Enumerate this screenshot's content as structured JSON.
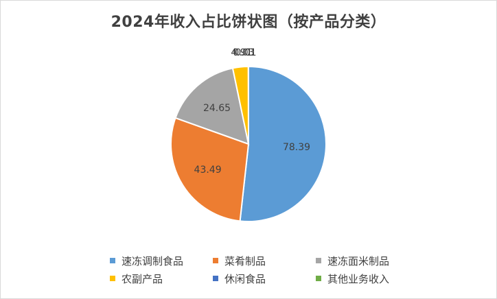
{
  "chart_data": {
    "type": "pie",
    "title": "2024年收入占比饼状图（按产品分类）",
    "categories": [
      "速冻调制食品",
      "菜肴制品",
      "速冻面米制品",
      "农副产品",
      "休闲食品",
      "其他业务收入"
    ],
    "values": [
      78.39,
      43.49,
      24.65,
      4.91,
      0.03,
      0.01
    ],
    "data_labels": [
      "78.39",
      "43.49",
      "24.65",
      "4.91",
      "0.03",
      "0.01"
    ],
    "colors": [
      "#5B9BD5",
      "#ED7D31",
      "#A5A5A5",
      "#FFC000",
      "#4472C4",
      "#70AD47"
    ],
    "legend_position": "bottom"
  }
}
